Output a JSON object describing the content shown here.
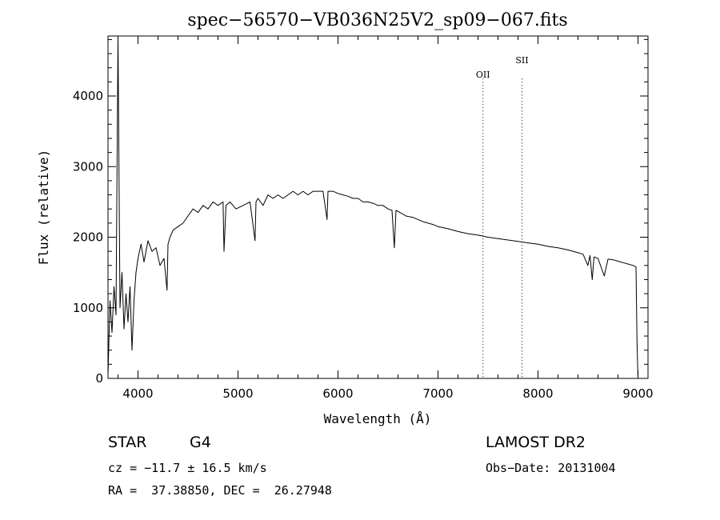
{
  "chart_data": {
    "type": "line",
    "title": "spec−56570−VB036N25V2_sp09−067.fits",
    "xlabel": "Wavelength (Å)",
    "ylabel": "Flux (relative)",
    "xlim": [
      3700,
      9100
    ],
    "ylim": [
      0,
      4850
    ],
    "xticks": [
      4000,
      5000,
      6000,
      7000,
      8000,
      9000
    ],
    "yticks": [
      0,
      1000,
      2000,
      3000,
      4000
    ],
    "grid": false,
    "series": [
      {
        "x": [
          3700,
          3720,
          3740,
          3760,
          3780,
          3800,
          3820,
          3840,
          3860,
          3880,
          3900,
          3920,
          3940,
          3960,
          3980,
          4000,
          4030,
          4060,
          4100,
          4140,
          4180,
          4220,
          4260,
          4290,
          4300,
          4320,
          4350,
          4400,
          4450,
          4500,
          4550,
          4600,
          4650,
          4700,
          4750,
          4800,
          4850,
          4860,
          4880,
          4920,
          4980,
          5050,
          5120,
          5170,
          5180,
          5200,
          5250,
          5300,
          5350,
          5400,
          5450,
          5500,
          5550,
          5600,
          5650,
          5700,
          5750,
          5800,
          5850,
          5890,
          5900,
          5950,
          6000,
          6050,
          6100,
          6150,
          6200,
          6250,
          6300,
          6350,
          6400,
          6450,
          6500,
          6540,
          6563,
          6580,
          6620,
          6680,
          6750,
          6800,
          6850,
          6900,
          6950,
          7000,
          7100,
          7200,
          7300,
          7400,
          7500,
          7600,
          7700,
          7800,
          7900,
          8000,
          8100,
          8200,
          8300,
          8400,
          8450,
          8498,
          8520,
          8542,
          8560,
          8600,
          8662,
          8700,
          8750,
          8800,
          8850,
          8900,
          8950,
          8980,
          8990,
          9000
        ],
        "y": [
          50,
          1100,
          650,
          1300,
          900,
          4850,
          1000,
          1500,
          700,
          1200,
          800,
          1300,
          400,
          1100,
          1500,
          1700,
          1900,
          1650,
          1950,
          1800,
          1850,
          1600,
          1700,
          1250,
          1900,
          2000,
          2100,
          2150,
          2200,
          2300,
          2400,
          2350,
          2450,
          2400,
          2500,
          2450,
          2500,
          1800,
          2450,
          2500,
          2400,
          2450,
          2500,
          1950,
          2500,
          2550,
          2450,
          2600,
          2550,
          2600,
          2550,
          2600,
          2650,
          2600,
          2650,
          2600,
          2650,
          2650,
          2650,
          2250,
          2650,
          2650,
          2620,
          2600,
          2580,
          2550,
          2550,
          2500,
          2500,
          2480,
          2450,
          2450,
          2400,
          2380,
          1850,
          2380,
          2350,
          2300,
          2280,
          2250,
          2220,
          2200,
          2180,
          2150,
          2120,
          2080,
          2050,
          2030,
          2000,
          1980,
          1960,
          1940,
          1920,
          1900,
          1870,
          1850,
          1820,
          1780,
          1760,
          1600,
          1740,
          1400,
          1720,
          1700,
          1450,
          1690,
          1680,
          1660,
          1640,
          1620,
          1600,
          1580,
          500,
          0
        ]
      }
    ],
    "line_markers": [
      {
        "label": "OII",
        "x": 7450
      },
      {
        "label": "SII",
        "x": 7840
      }
    ]
  },
  "info": {
    "object_type": "STAR",
    "subclass": "G4",
    "survey": "LAMOST DR2",
    "redshift": "cz = −11.7 ± 16.5 km/s",
    "obs_date": "Obs−Date: 20131004",
    "coords": "RA =  37.38850, DEC =  26.27948"
  }
}
